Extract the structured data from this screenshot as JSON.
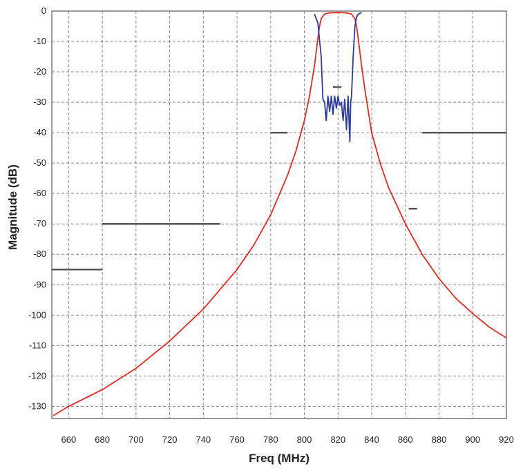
{
  "chart_data": {
    "type": "line",
    "title": "",
    "xlabel": "Freq (MHz)",
    "ylabel": "Magnitude (dB)",
    "xlim": [
      650,
      920
    ],
    "ylim": [
      -134,
      0
    ],
    "x_ticks": [
      660,
      680,
      700,
      720,
      740,
      760,
      780,
      800,
      820,
      840,
      860,
      880,
      900,
      920
    ],
    "y_ticks": [
      0,
      -10,
      -20,
      -30,
      -40,
      -50,
      -60,
      -70,
      -80,
      -90,
      -100,
      -110,
      -120,
      -130
    ],
    "grid": true,
    "legend": "none",
    "series": [
      {
        "color": "#e8281e",
        "x": [
          651,
          660,
          680,
          700,
          720,
          740,
          760,
          770,
          780,
          790,
          795,
          800,
          803,
          806,
          808,
          809,
          810,
          812,
          815,
          820,
          825,
          828,
          830,
          831,
          832,
          834,
          836,
          840,
          845,
          850,
          860,
          870,
          880,
          890,
          900,
          910,
          920
        ],
        "y": [
          -133,
          -130,
          -124.5,
          -117.5,
          -108.5,
          -98,
          -85,
          -77,
          -67,
          -54,
          -46,
          -36,
          -28,
          -18,
          -9,
          -5,
          -2.5,
          -1,
          -0.6,
          -0.5,
          -0.6,
          -1,
          -2.5,
          -5,
          -9,
          -18,
          -26,
          -40,
          -50,
          -58,
          -70,
          -80,
          -88,
          -94.5,
          -99.5,
          -104,
          -107.5
        ]
      },
      {
        "color": "#2a3a9e",
        "x": [
          806,
          808,
          810,
          811,
          812,
          813,
          814,
          815,
          816,
          817,
          818,
          819,
          820,
          821,
          822,
          823,
          824,
          825,
          826,
          827,
          827.5,
          828,
          829,
          830,
          831,
          832,
          834
        ],
        "y": [
          -1,
          -4,
          -15,
          -29,
          -30,
          -36,
          -28,
          -33,
          -28,
          -34,
          -28,
          -32,
          -28,
          -31,
          -30,
          -36,
          -29,
          -39,
          -28,
          -43,
          -30,
          -28,
          -15,
          -5,
          -2,
          -1,
          -0.5
        ]
      }
    ],
    "mask_segments": [
      {
        "x": [
          650,
          680
        ],
        "y": -85
      },
      {
        "x": [
          680,
          750
        ],
        "y": -70
      },
      {
        "x": [
          780,
          790
        ],
        "y": -40
      },
      {
        "x": [
          817,
          822
        ],
        "y": -25
      },
      {
        "x": [
          862,
          867
        ],
        "y": -65
      },
      {
        "x": [
          870,
          920
        ],
        "y": -40
      }
    ],
    "mask_color": "#555555"
  }
}
